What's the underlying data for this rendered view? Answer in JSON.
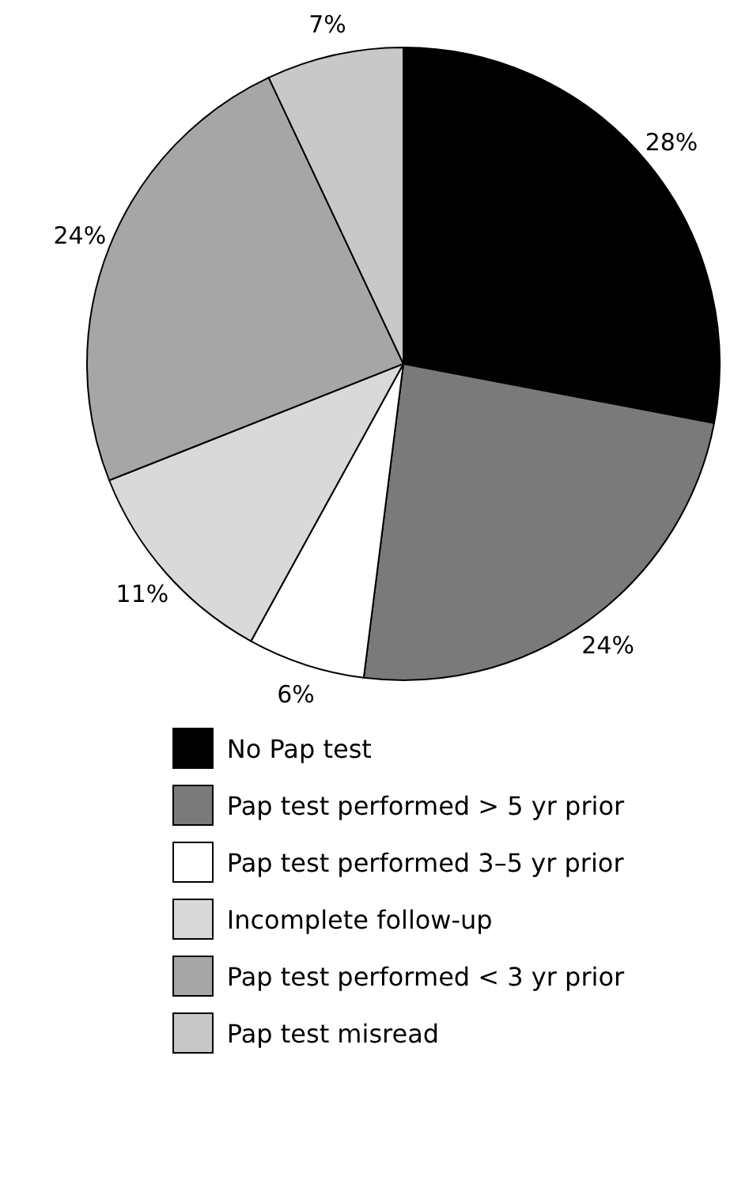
{
  "chart_data": {
    "type": "pie",
    "categories": [
      "No Pap test",
      "Pap test performed > 5 yr prior",
      "Pap test performed 3–5 yr prior",
      "Incomplete follow-up",
      "Pap test performed < 3 yr prior",
      "Pap test misread"
    ],
    "values": [
      28,
      24,
      6,
      11,
      24,
      7
    ],
    "value_labels": [
      "28%",
      "24%",
      "6%",
      "11%",
      "24%",
      "7%"
    ],
    "colors": [
      "#000000",
      "#7a7a7a",
      "#ffffff",
      "#d9d9d9",
      "#a6a6a6",
      "#c8c8c8"
    ],
    "legend": "bottom"
  }
}
